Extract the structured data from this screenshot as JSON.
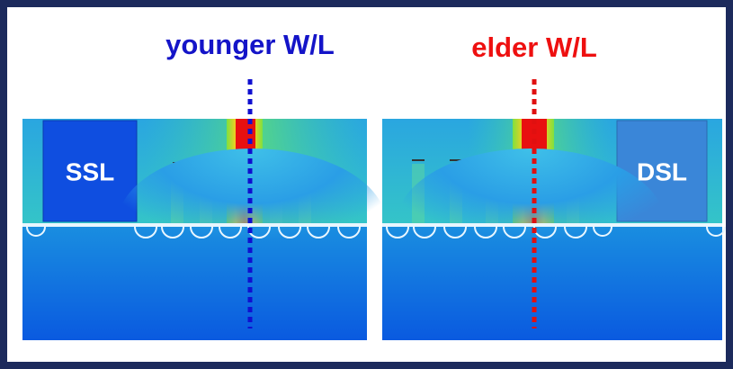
{
  "labels": {
    "left": "younger W/L",
    "right": "elder W/L"
  },
  "panels": {
    "left_box": "SSL",
    "right_box": "DSL"
  }
}
